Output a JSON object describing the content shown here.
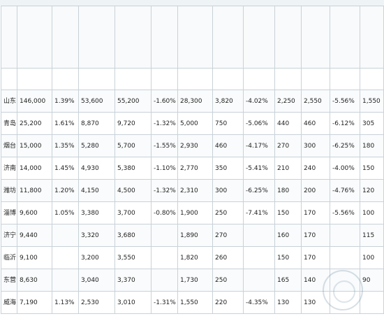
{
  "rows": [
    {
      "region": "山东",
      "c1": "146,000",
      "c2": "1.39%",
      "c3": "53,600",
      "c4": "55,200",
      "c5": "-1.60%",
      "c6": "28,300",
      "c7": "3,820",
      "c8": "-4.02%",
      "c9": "2,250",
      "c10": "2,550",
      "c11": "-5.56%",
      "c12": "1,550"
    },
    {
      "region": "青岛",
      "c1": "25,200",
      "c2": "1.61%",
      "c3": "8,870",
      "c4": "9,720",
      "c5": "-1.32%",
      "c6": "5,000",
      "c7": "750",
      "c8": "-5.06%",
      "c9": "440",
      "c10": "460",
      "c11": "-6.12%",
      "c12": "305"
    },
    {
      "region": "烟台",
      "c1": "15,000",
      "c2": "1.35%",
      "c3": "5,280",
      "c4": "5,700",
      "c5": "-1.55%",
      "c6": "2,930",
      "c7": "460",
      "c8": "-4.17%",
      "c9": "270",
      "c10": "300",
      "c11": "-6.25%",
      "c12": "180"
    },
    {
      "region": "济南",
      "c1": "14,000",
      "c2": "1.45%",
      "c3": "4,930",
      "c4": "5,380",
      "c5": "-1.10%",
      "c6": "2,770",
      "c7": "350",
      "c8": "-5.41%",
      "c9": "210",
      "c10": "240",
      "c11": "-4.00%",
      "c12": "150"
    },
    {
      "region": "潍坊",
      "c1": "11,800",
      "c2": "1.20%",
      "c3": "4,150",
      "c4": "4,500",
      "c5": "-1.32%",
      "c6": "2,310",
      "c7": "300",
      "c8": "-6.25%",
      "c9": "180",
      "c10": "200",
      "c11": "-4.76%",
      "c12": "120"
    },
    {
      "region": "淄博",
      "c1": "9,600",
      "c2": "1.05%",
      "c3": "3,380",
      "c4": "3,700",
      "c5": "-0.80%",
      "c6": "1,900",
      "c7": "250",
      "c8": "-7.41%",
      "c9": "150",
      "c10": "170",
      "c11": "-5.56%",
      "c12": "100"
    },
    {
      "region": "济宁",
      "c1": "9,440",
      "c2": "",
      "c3": "3,320",
      "c4": "3,680",
      "c5": "",
      "c6": "1,890",
      "c7": "270",
      "c8": "",
      "c9": "160",
      "c10": "170",
      "c11": "",
      "c12": "115"
    },
    {
      "region": "临沂",
      "c1": "9,100",
      "c2": "",
      "c3": "3,200",
      "c4": "3,550",
      "c5": "",
      "c6": "1,820",
      "c7": "260",
      "c8": "",
      "c9": "150",
      "c10": "170",
      "c11": "",
      "c12": "100"
    },
    {
      "region": "东营",
      "c1": "8,630",
      "c2": "",
      "c3": "3,040",
      "c4": "3,370",
      "c5": "",
      "c6": "1,730",
      "c7": "250",
      "c8": "",
      "c9": "165",
      "c10": "140",
      "c11": "",
      "c12": "90"
    },
    {
      "region": "威海",
      "c1": "7,190",
      "c2": "1.13%",
      "c3": "2,530",
      "c4": "3,010",
      "c5": "-1.31%",
      "c6": "1,550",
      "c7": "220",
      "c8": "-4.35%",
      "c9": "130",
      "c10": "130",
      "c11": "",
      "c12": ""
    }
  ]
}
